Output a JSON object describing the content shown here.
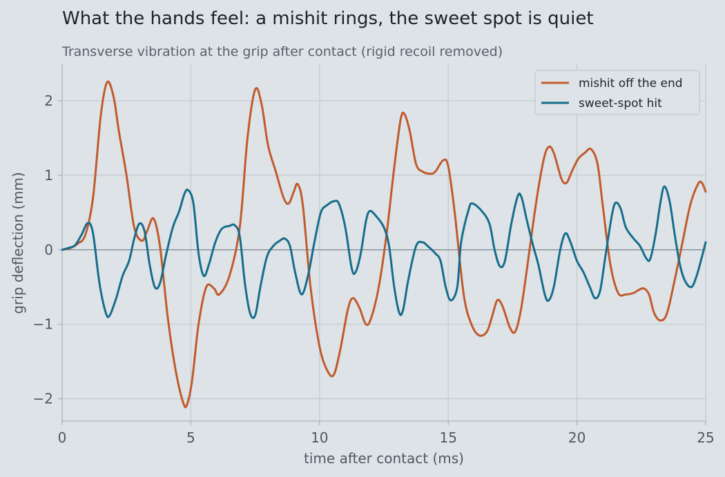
{
  "title": "What the hands feel: a mishit rings, the sweet spot is quiet",
  "subtitle": "Transverse vibration at the grip after contact (rigid recoil removed)",
  "chart_data": {
    "type": "line",
    "xlabel": "time after contact (ms)",
    "ylabel": "grip deflection (mm)",
    "xlim": [
      0,
      25
    ],
    "ylim": [
      -2.3,
      2.5
    ],
    "xticks": [
      0,
      5,
      10,
      15,
      20,
      25
    ],
    "xtick_labels": [
      "0",
      "5",
      "10",
      "15",
      "20",
      "25"
    ],
    "yticks": [
      -2,
      -1,
      0,
      1,
      2
    ],
    "ytick_labels": [
      "−2",
      "−1",
      "0",
      "1",
      "2"
    ],
    "grid": true,
    "legend_position": "top-right",
    "series": [
      {
        "name": "mishit off the end",
        "color": "#c05a2c",
        "points": [
          [
            0,
            0
          ],
          [
            0.3,
            0.02
          ],
          [
            0.6,
            0.08
          ],
          [
            0.9,
            0.2
          ],
          [
            1.2,
            0.7
          ],
          [
            1.5,
            1.8
          ],
          [
            1.75,
            2.25
          ],
          [
            2.0,
            2.05
          ],
          [
            2.2,
            1.6
          ],
          [
            2.5,
            1.0
          ],
          [
            2.8,
            0.3
          ],
          [
            3.1,
            0.12
          ],
          [
            3.3,
            0.25
          ],
          [
            3.55,
            0.42
          ],
          [
            3.8,
            0.05
          ],
          [
            4.1,
            -0.9
          ],
          [
            4.4,
            -1.6
          ],
          [
            4.7,
            -2.05
          ],
          [
            4.85,
            -2.08
          ],
          [
            5.05,
            -1.75
          ],
          [
            5.3,
            -1.0
          ],
          [
            5.6,
            -0.5
          ],
          [
            5.9,
            -0.52
          ],
          [
            6.1,
            -0.6
          ],
          [
            6.5,
            -0.35
          ],
          [
            6.9,
            0.3
          ],
          [
            7.2,
            1.5
          ],
          [
            7.5,
            2.15
          ],
          [
            7.75,
            1.95
          ],
          [
            8.0,
            1.4
          ],
          [
            8.3,
            1.05
          ],
          [
            8.6,
            0.7
          ],
          [
            8.8,
            0.62
          ],
          [
            9.0,
            0.78
          ],
          [
            9.15,
            0.88
          ],
          [
            9.35,
            0.6
          ],
          [
            9.65,
            -0.5
          ],
          [
            10.0,
            -1.3
          ],
          [
            10.3,
            -1.62
          ],
          [
            10.55,
            -1.68
          ],
          [
            10.8,
            -1.35
          ],
          [
            11.1,
            -0.8
          ],
          [
            11.3,
            -0.65
          ],
          [
            11.55,
            -0.78
          ],
          [
            11.8,
            -1.0
          ],
          [
            12.0,
            -0.92
          ],
          [
            12.3,
            -0.5
          ],
          [
            12.6,
            0.2
          ],
          [
            12.9,
            1.1
          ],
          [
            13.15,
            1.75
          ],
          [
            13.3,
            1.82
          ],
          [
            13.5,
            1.6
          ],
          [
            13.75,
            1.15
          ],
          [
            14.0,
            1.05
          ],
          [
            14.3,
            1.02
          ],
          [
            14.5,
            1.05
          ],
          [
            14.8,
            1.2
          ],
          [
            15.0,
            1.12
          ],
          [
            15.25,
            0.5
          ],
          [
            15.6,
            -0.6
          ],
          [
            15.9,
            -1.0
          ],
          [
            16.2,
            -1.15
          ],
          [
            16.5,
            -1.1
          ],
          [
            16.7,
            -0.9
          ],
          [
            16.9,
            -0.68
          ],
          [
            17.1,
            -0.75
          ],
          [
            17.4,
            -1.05
          ],
          [
            17.6,
            -1.1
          ],
          [
            17.8,
            -0.85
          ],
          [
            18.0,
            -0.4
          ],
          [
            18.4,
            0.6
          ],
          [
            18.7,
            1.2
          ],
          [
            18.9,
            1.38
          ],
          [
            19.1,
            1.3
          ],
          [
            19.4,
            0.95
          ],
          [
            19.6,
            0.9
          ],
          [
            19.8,
            1.05
          ],
          [
            20.05,
            1.22
          ],
          [
            20.3,
            1.3
          ],
          [
            20.55,
            1.35
          ],
          [
            20.8,
            1.15
          ],
          [
            21.0,
            0.6
          ],
          [
            21.3,
            -0.2
          ],
          [
            21.6,
            -0.58
          ],
          [
            21.9,
            -0.6
          ],
          [
            22.2,
            -0.58
          ],
          [
            22.4,
            -0.54
          ],
          [
            22.6,
            -0.52
          ],
          [
            22.8,
            -0.6
          ],
          [
            23.0,
            -0.85
          ],
          [
            23.25,
            -0.95
          ],
          [
            23.5,
            -0.85
          ],
          [
            23.8,
            -0.4
          ],
          [
            24.1,
            0.1
          ],
          [
            24.4,
            0.6
          ],
          [
            24.7,
            0.88
          ],
          [
            24.85,
            0.9
          ],
          [
            25.0,
            0.78
          ]
        ]
      },
      {
        "name": "sweet-spot hit",
        "color": "#156d8b",
        "points": [
          [
            0,
            0
          ],
          [
            0.2,
            0.02
          ],
          [
            0.5,
            0.06
          ],
          [
            0.75,
            0.2
          ],
          [
            1.0,
            0.36
          ],
          [
            1.2,
            0.22
          ],
          [
            1.45,
            -0.45
          ],
          [
            1.7,
            -0.85
          ],
          [
            1.85,
            -0.88
          ],
          [
            2.1,
            -0.65
          ],
          [
            2.35,
            -0.35
          ],
          [
            2.6,
            -0.15
          ],
          [
            2.8,
            0.15
          ],
          [
            3.0,
            0.35
          ],
          [
            3.2,
            0.25
          ],
          [
            3.4,
            -0.2
          ],
          [
            3.6,
            -0.5
          ],
          [
            3.8,
            -0.45
          ],
          [
            4.05,
            -0.05
          ],
          [
            4.3,
            0.3
          ],
          [
            4.55,
            0.52
          ],
          [
            4.75,
            0.75
          ],
          [
            4.9,
            0.8
          ],
          [
            5.1,
            0.62
          ],
          [
            5.3,
            -0.05
          ],
          [
            5.5,
            -0.35
          ],
          [
            5.7,
            -0.2
          ],
          [
            5.95,
            0.1
          ],
          [
            6.2,
            0.28
          ],
          [
            6.5,
            0.32
          ],
          [
            6.7,
            0.33
          ],
          [
            6.9,
            0.18
          ],
          [
            7.1,
            -0.45
          ],
          [
            7.3,
            -0.85
          ],
          [
            7.5,
            -0.88
          ],
          [
            7.7,
            -0.5
          ],
          [
            7.95,
            -0.1
          ],
          [
            8.2,
            0.05
          ],
          [
            8.45,
            0.12
          ],
          [
            8.65,
            0.15
          ],
          [
            8.85,
            0.05
          ],
          [
            9.05,
            -0.3
          ],
          [
            9.3,
            -0.6
          ],
          [
            9.55,
            -0.35
          ],
          [
            9.8,
            0.1
          ],
          [
            10.05,
            0.5
          ],
          [
            10.3,
            0.6
          ],
          [
            10.55,
            0.65
          ],
          [
            10.75,
            0.62
          ],
          [
            11.0,
            0.3
          ],
          [
            11.25,
            -0.25
          ],
          [
            11.4,
            -0.3
          ],
          [
            11.6,
            -0.05
          ],
          [
            11.8,
            0.38
          ],
          [
            11.95,
            0.52
          ],
          [
            12.2,
            0.45
          ],
          [
            12.5,
            0.3
          ],
          [
            12.7,
            0.05
          ],
          [
            12.9,
            -0.5
          ],
          [
            13.1,
            -0.85
          ],
          [
            13.25,
            -0.8
          ],
          [
            13.45,
            -0.4
          ],
          [
            13.75,
            0.05
          ],
          [
            14.0,
            0.1
          ],
          [
            14.2,
            0.05
          ],
          [
            14.5,
            -0.05
          ],
          [
            14.7,
            -0.15
          ],
          [
            14.9,
            -0.5
          ],
          [
            15.1,
            -0.68
          ],
          [
            15.35,
            -0.5
          ],
          [
            15.5,
            0.1
          ],
          [
            15.8,
            0.55
          ],
          [
            15.95,
            0.62
          ],
          [
            16.3,
            0.52
          ],
          [
            16.6,
            0.35
          ],
          [
            16.8,
            0.0
          ],
          [
            17.0,
            -0.22
          ],
          [
            17.2,
            -0.15
          ],
          [
            17.45,
            0.35
          ],
          [
            17.7,
            0.72
          ],
          [
            17.85,
            0.7
          ],
          [
            18.05,
            0.4
          ],
          [
            18.3,
            0.05
          ],
          [
            18.5,
            -0.2
          ],
          [
            18.75,
            -0.6
          ],
          [
            18.9,
            -0.68
          ],
          [
            19.1,
            -0.5
          ],
          [
            19.35,
            0.0
          ],
          [
            19.55,
            0.22
          ],
          [
            19.75,
            0.1
          ],
          [
            20.0,
            -0.15
          ],
          [
            20.25,
            -0.3
          ],
          [
            20.5,
            -0.5
          ],
          [
            20.7,
            -0.65
          ],
          [
            20.9,
            -0.55
          ],
          [
            21.1,
            -0.1
          ],
          [
            21.35,
            0.45
          ],
          [
            21.5,
            0.63
          ],
          [
            21.7,
            0.55
          ],
          [
            21.9,
            0.3
          ],
          [
            22.2,
            0.15
          ],
          [
            22.45,
            0.05
          ],
          [
            22.7,
            -0.12
          ],
          [
            22.85,
            -0.12
          ],
          [
            23.05,
            0.2
          ],
          [
            23.25,
            0.65
          ],
          [
            23.4,
            0.85
          ],
          [
            23.6,
            0.65
          ],
          [
            23.8,
            0.2
          ],
          [
            24.0,
            -0.2
          ],
          [
            24.2,
            -0.42
          ],
          [
            24.45,
            -0.5
          ],
          [
            24.65,
            -0.35
          ],
          [
            24.85,
            -0.1
          ],
          [
            25.0,
            0.1
          ]
        ]
      }
    ]
  }
}
